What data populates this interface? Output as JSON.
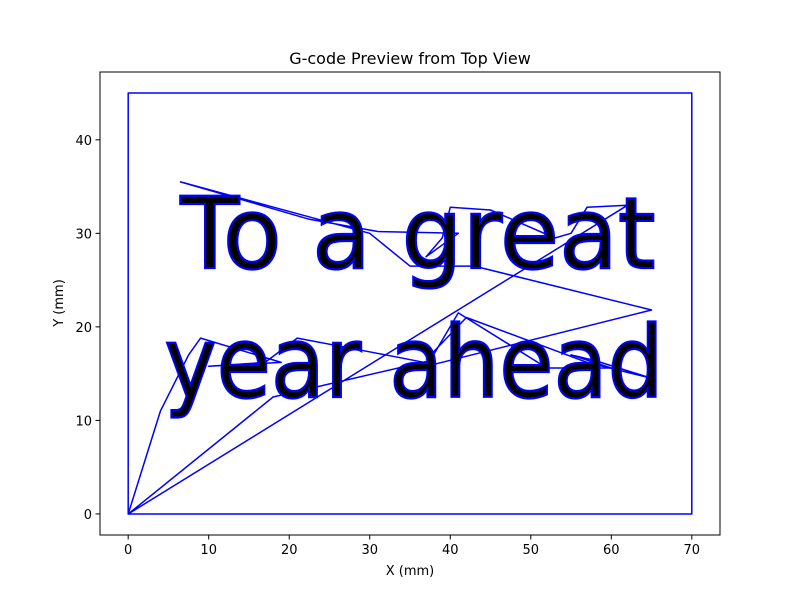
{
  "chart_data": {
    "type": "line",
    "title": "G-code Preview from Top View",
    "xlabel": "X (mm)",
    "ylabel": "Y (mm)",
    "xlim": [
      -3.5,
      73.5
    ],
    "ylim": [
      -2.25,
      47.25
    ],
    "xticks": [
      0,
      10,
      20,
      30,
      40,
      50,
      60,
      70
    ],
    "yticks": [
      0,
      10,
      20,
      30,
      40
    ],
    "grid": false,
    "legend": "none",
    "series": [
      {
        "color": "#0000ff",
        "points": [
          [
            0,
            0
          ],
          [
            70,
            0
          ],
          [
            70,
            45
          ],
          [
            0,
            45
          ],
          [
            0,
            0
          ],
          [
            62,
            33
          ],
          [
            57,
            32.8
          ],
          [
            55,
            30
          ],
          [
            53,
            29.5
          ],
          [
            45,
            32.5
          ],
          [
            40,
            32.8
          ],
          [
            39,
            29.5
          ],
          [
            37,
            27.5
          ],
          [
            41,
            30
          ],
          [
            31,
            30.2
          ],
          [
            22.5,
            31.5
          ],
          [
            6.5,
            35.5
          ],
          [
            30,
            30
          ],
          [
            35,
            26.5
          ],
          [
            43,
            26.5
          ],
          [
            65,
            21.8
          ],
          [
            38,
            16
          ],
          [
            29,
            17.5
          ],
          [
            21,
            18.8
          ],
          [
            17,
            16.2
          ],
          [
            10,
            15.8
          ],
          [
            19,
            16.2
          ],
          [
            9,
            18.8
          ],
          [
            7.5,
            17
          ],
          [
            4,
            11
          ],
          [
            0,
            0
          ],
          [
            18,
            12.5
          ],
          [
            37.5,
            16.4
          ],
          [
            41,
            21.5
          ],
          [
            52,
            15.6
          ],
          [
            48,
            15.6
          ],
          [
            60,
            15.6
          ],
          [
            55,
            17
          ],
          [
            58,
            16.4
          ],
          [
            65,
            14.5
          ],
          [
            57,
            16.2
          ],
          [
            42,
            21
          ],
          [
            37,
            16.5
          ]
        ]
      }
    ],
    "glyphs": [
      {
        "text": "To a great",
        "x_start": 6.5,
        "x_end": 65.5,
        "baseline": 26.3
      },
      {
        "text": "year ahead",
        "x_start": 4.5,
        "x_end": 66.5,
        "baseline": 12.5
      }
    ]
  }
}
